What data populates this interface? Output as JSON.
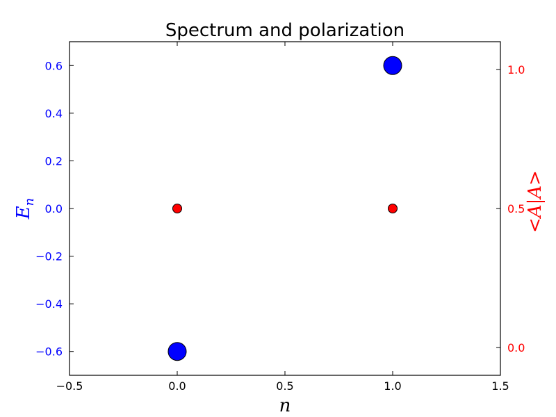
{
  "chart_data": {
    "type": "scatter",
    "title": "Spectrum and polarization",
    "xlabel": "n",
    "ylabel_left": "E_n",
    "ylabel_right": "<A|A>",
    "xlim": [
      -0.5,
      1.5
    ],
    "ylim_left": [
      -0.7,
      0.7
    ],
    "ylim_right": [
      -0.1,
      1.1
    ],
    "grid": false,
    "x_ticks": [
      {
        "value": -0.5,
        "label": "−0.5"
      },
      {
        "value": 0.0,
        "label": "0.0"
      },
      {
        "value": 0.5,
        "label": "0.5"
      },
      {
        "value": 1.0,
        "label": "1.0"
      },
      {
        "value": 1.5,
        "label": "1.5"
      }
    ],
    "y_left_ticks": [
      {
        "value": -0.6,
        "label": "−0.6"
      },
      {
        "value": -0.4,
        "label": "−0.4"
      },
      {
        "value": -0.2,
        "label": "−0.2"
      },
      {
        "value": 0.0,
        "label": "0.0"
      },
      {
        "value": 0.2,
        "label": "0.2"
      },
      {
        "value": 0.4,
        "label": "0.4"
      },
      {
        "value": 0.6,
        "label": "0.6"
      }
    ],
    "y_right_ticks": [
      {
        "value": 0.0,
        "label": "0.0"
      },
      {
        "value": 0.5,
        "label": "0.5"
      },
      {
        "value": 1.0,
        "label": "1.0"
      }
    ],
    "series": [
      {
        "axis": "left",
        "color": "#0000ff",
        "marker": "large",
        "points": [
          {
            "x": 0,
            "y": -0.6
          },
          {
            "x": 1,
            "y": 0.6
          }
        ]
      },
      {
        "axis": "right",
        "color": "#ff0000",
        "marker": "small",
        "points": [
          {
            "x": 0,
            "y": 0.5
          },
          {
            "x": 1,
            "y": 0.5
          }
        ]
      }
    ],
    "colors": {
      "left_axis": "#0000ff",
      "right_axis": "#ff0000",
      "frame": "#000000"
    }
  }
}
